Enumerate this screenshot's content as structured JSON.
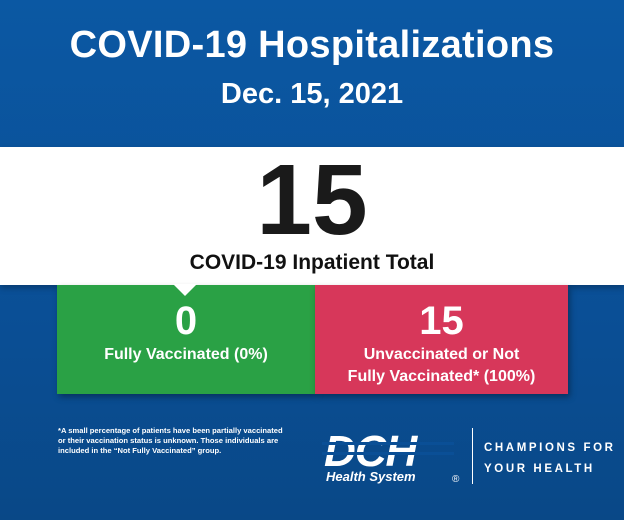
{
  "header": {
    "title": "COVID-19 Hospitalizations",
    "date": "Dec. 15, 2021"
  },
  "total": {
    "value": "15",
    "label": "COVID-19 Inpatient Total"
  },
  "vaccinated": {
    "value": "0",
    "label": "Fully Vaccinated (0%)",
    "color": "#2aa145"
  },
  "unvaccinated": {
    "value": "15",
    "label_line1": "Unvaccinated or Not",
    "label_line2": "Fully Vaccinated* (100%)",
    "color": "#d7375a"
  },
  "footnote": {
    "line1": "*A small percentage of patients have been partially vaccinated",
    "line2": "or their vaccination status is unknown. Those individuals are",
    "line3": "included in the “Not Fully Vaccinated” group."
  },
  "logo": {
    "letters": "DCH",
    "subtitle": "Health System",
    "mark": "®",
    "tagline_line1": "CHAMPIONS FOR",
    "tagline_line2": "YOUR HEALTH"
  },
  "colors": {
    "background": "#0a4f96",
    "accent_white": "#ffffff"
  }
}
